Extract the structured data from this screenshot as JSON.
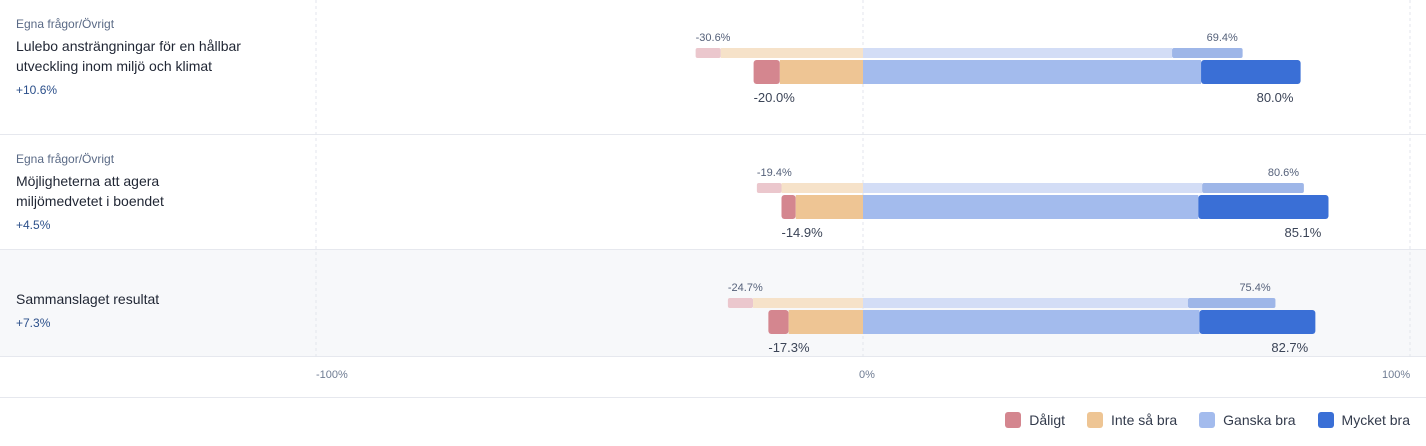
{
  "rows": [
    {
      "category": "Egna frågor/Övrigt",
      "question": "Lulebo ansträngningar för en hållbar utveckling inom miljö och klimat",
      "delta": "+10.6%"
    },
    {
      "category": "Egna frågor/Övrigt",
      "question": "Möjligheterna att agera miljömedvetet i boendet",
      "delta": "+4.5%"
    },
    {
      "category": "",
      "question": "Sammanslaget resultat",
      "delta": "+7.3%"
    }
  ],
  "legend": [
    {
      "label": "Dåligt",
      "color": "#d4868f"
    },
    {
      "label": "Inte så bra",
      "color": "#eec594"
    },
    {
      "label": "Ganska bra",
      "color": "#a3bbed"
    },
    {
      "label": "Mycket bra",
      "color": "#3a6fd6"
    }
  ],
  "chart_data": {
    "type": "bar",
    "subtype": "diverging-stacked-horizontal",
    "xlim": [
      -100,
      100
    ],
    "x_ticks": [
      "-100%",
      "0%",
      "100%"
    ],
    "categories": [
      "Lulebo ansträngningar för en hållbar utveckling inom miljö och klimat",
      "Möjligheterna att agera miljömedvetet i boendet",
      "Sammanslaget resultat"
    ],
    "series": [
      {
        "name": "Dåligt",
        "values": [
          4.8,
          2.6,
          3.7
        ]
      },
      {
        "name": "Inte så bra",
        "values": [
          15.2,
          12.3,
          13.6
        ]
      },
      {
        "name": "Ganska bra",
        "values": [
          61.8,
          61.3,
          61.5
        ]
      },
      {
        "name": "Mycket bra",
        "values": [
          18.2,
          23.8,
          21.2
        ]
      }
    ],
    "comparison": [
      {
        "negative": [
          4.6,
          4.5,
          4.6
        ],
        "somewhat_negative": [
          26.0,
          14.9,
          20.1
        ],
        "somewhat_positive": [
          56.5,
          62.0,
          59.4
        ],
        "positive": [
          12.9,
          18.6,
          16.0
        ]
      }
    ],
    "labels": {
      "current_negative": [
        "-20.0%",
        "-14.9%",
        "-17.3%"
      ],
      "current_positive": [
        "80.0%",
        "85.1%",
        "82.7%"
      ],
      "comparison_negative": [
        "-30.6%",
        "-19.4%",
        "-24.7%"
      ],
      "comparison_positive": [
        "69.4%",
        "80.6%",
        "75.4%"
      ]
    },
    "legend_position": "bottom-right",
    "grid": true
  }
}
